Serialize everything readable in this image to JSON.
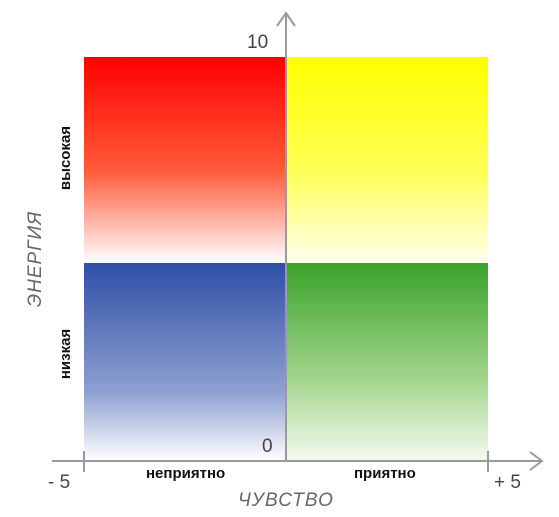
{
  "diagram": {
    "y_axis": {
      "title": "ЭНЕРГИЯ",
      "max_label": "10",
      "min_label": "0",
      "high_label": "высокая",
      "low_label": "низкая"
    },
    "x_axis": {
      "title": "ЧУВСТВО",
      "min_label": "- 5",
      "max_label": "+ 5",
      "left_label": "неприятно",
      "right_label": "приятно"
    },
    "quadrant_colors": {
      "top_left": "#ff0000",
      "top_right": "#ffff00",
      "bottom_left": "#2f4fa5",
      "bottom_right": "#3aa32a"
    },
    "axis_color": "#9a9a9a"
  }
}
